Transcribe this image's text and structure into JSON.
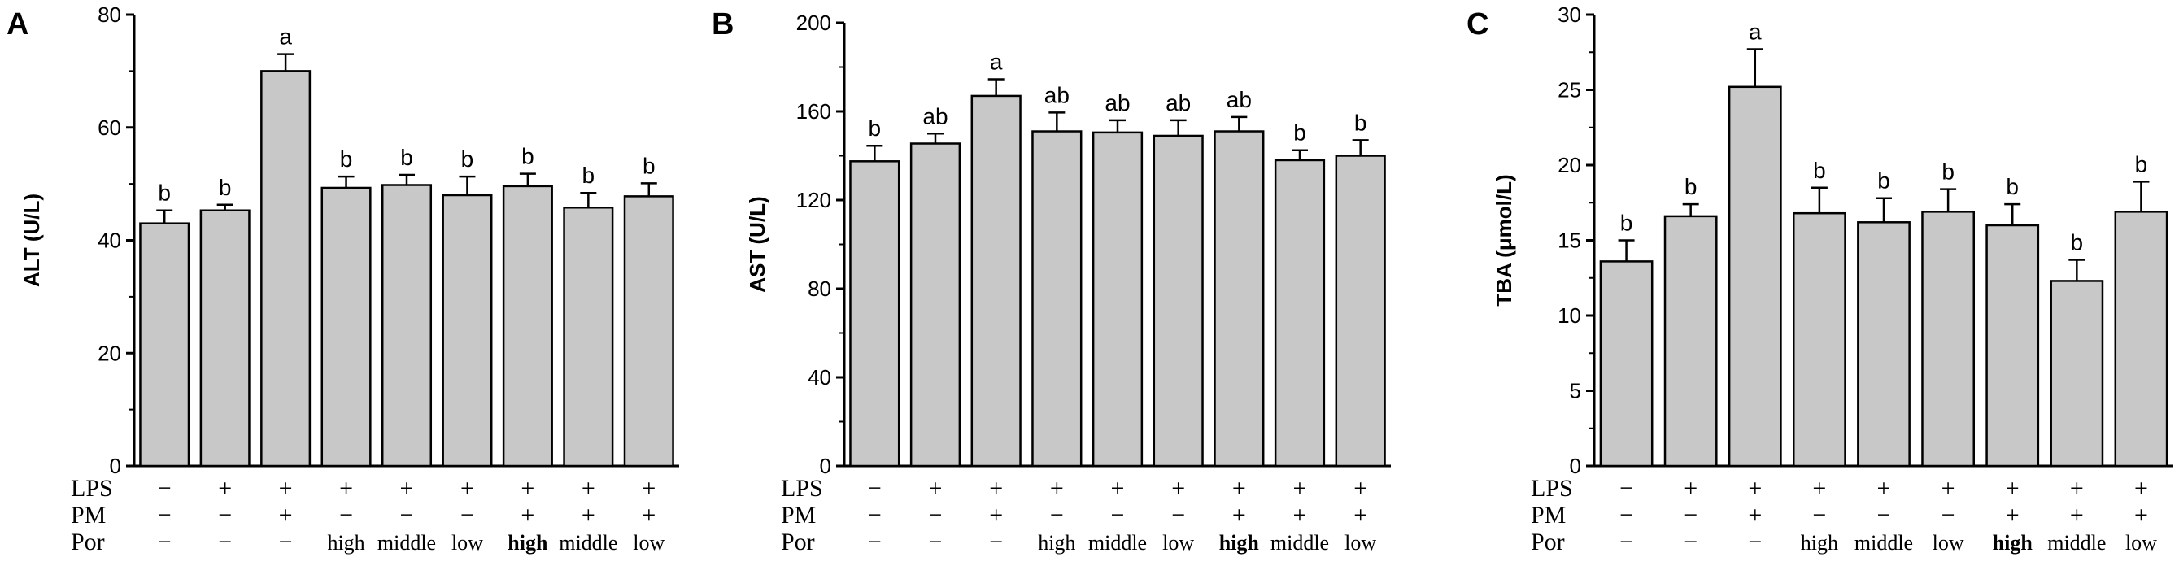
{
  "chart_data": [
    {
      "type": "bar",
      "panel": "A",
      "ylabel": "ALT (U/L)",
      "ylim": [
        0,
        80
      ],
      "yticks": [
        "0",
        "20",
        "40",
        "60",
        "80"
      ],
      "values": [
        43,
        45.3,
        70,
        49.3,
        49.8,
        48,
        49.6,
        45.8,
        47.8
      ],
      "errors": [
        2.3,
        1.0,
        3.0,
        2.0,
        1.8,
        3.3,
        2.2,
        2.6,
        2.3
      ],
      "significance": [
        "b",
        "b",
        "a",
        "b",
        "b",
        "b",
        "b",
        "b",
        "b"
      ],
      "bar_color": "#c8c8c8"
    },
    {
      "type": "bar",
      "panel": "B",
      "ylabel": "AST (U/L)",
      "ylim": [
        0,
        200
      ],
      "yticks": [
        "0",
        "40",
        "80",
        "120",
        "160",
        "200"
      ],
      "values": [
        137.5,
        145.5,
        167,
        151,
        150.5,
        149,
        151,
        138,
        140
      ],
      "errors": [
        7.0,
        4.5,
        7.5,
        8.5,
        5.5,
        7.0,
        6.5,
        4.5,
        7.0
      ],
      "significance": [
        "b",
        "ab",
        "a",
        "ab",
        "ab",
        "ab",
        "ab",
        "b",
        "b"
      ],
      "bar_color": "#c8c8c8"
    },
    {
      "type": "bar",
      "panel": "C",
      "ylabel": "TBA (μmol/L)",
      "ylim": [
        0,
        30
      ],
      "yticks": [
        "0",
        "5",
        "10",
        "15",
        "20",
        "25",
        "30"
      ],
      "values": [
        13.6,
        16.6,
        25.2,
        16.8,
        16.2,
        16.9,
        16.0,
        12.3,
        16.9
      ],
      "errors": [
        1.4,
        0.8,
        2.5,
        1.7,
        1.6,
        1.5,
        1.4,
        1.4,
        2.0
      ],
      "significance": [
        "b",
        "b",
        "a",
        "b",
        "b",
        "b",
        "b",
        "b",
        "b"
      ],
      "bar_color": "#c8c8c8"
    }
  ],
  "conditions": {
    "labels": {
      "lps": "LPS",
      "pm": "PM",
      "por": "Por"
    },
    "lps": [
      "−",
      "+",
      "+",
      "+",
      "+",
      "+",
      "+",
      "+",
      "+"
    ],
    "pm": [
      "−",
      "−",
      "+",
      "−",
      "−",
      "−",
      "+",
      "+",
      "+"
    ],
    "por": [
      "−",
      "−",
      "−",
      "high",
      "middle",
      "low",
      "high",
      "middle",
      "low"
    ],
    "por_bold": [
      false,
      false,
      false,
      false,
      false,
      false,
      true,
      false,
      false
    ]
  }
}
